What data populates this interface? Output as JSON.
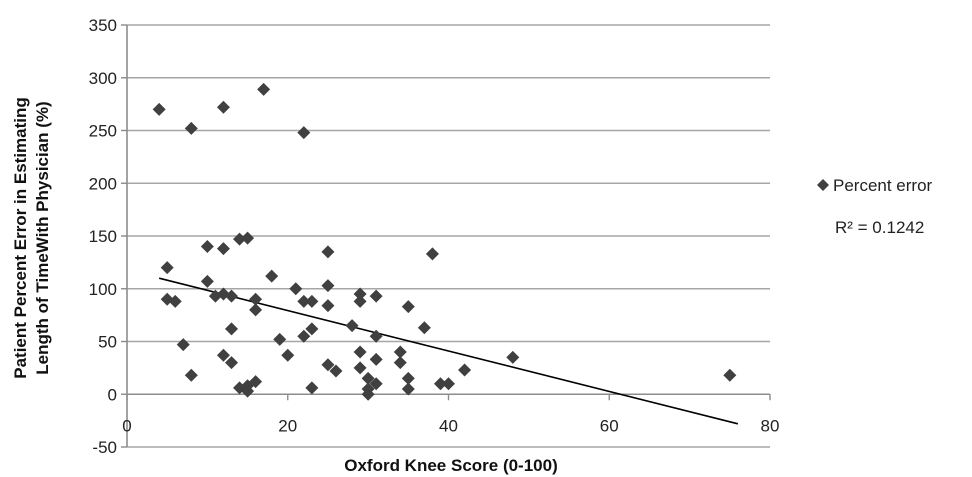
{
  "chart_data": {
    "type": "scatter",
    "title": "",
    "xlabel": "Oxford Knee Score (0-100)",
    "ylabel_lines": [
      "Patient Percent Error in Estimating",
      "Length of TimeWith Physician (%)"
    ],
    "xlim": [
      0,
      80
    ],
    "ylim": [
      -50,
      350
    ],
    "x_ticks": [
      0,
      20,
      40,
      60,
      80
    ],
    "y_ticks": [
      -50,
      0,
      50,
      100,
      150,
      200,
      250,
      300,
      350
    ],
    "grid": "horizontal",
    "legend_position": "right",
    "marker": "diamond",
    "colors": {
      "marker": "#404040",
      "trendline": "#000000",
      "grid": "#a6a6a6",
      "axis": "#8c8c8c"
    },
    "series": [
      {
        "name": "Percent error",
        "points": [
          [
            4,
            270
          ],
          [
            8,
            252
          ],
          [
            12,
            272
          ],
          [
            17,
            289
          ],
          [
            22,
            248
          ],
          [
            5,
            120
          ],
          [
            10,
            140
          ],
          [
            12,
            138
          ],
          [
            14,
            147
          ],
          [
            15,
            148
          ],
          [
            5,
            90
          ],
          [
            6,
            88
          ],
          [
            10,
            107
          ],
          [
            11,
            93
          ],
          [
            12,
            95
          ],
          [
            13,
            93
          ],
          [
            7,
            47
          ],
          [
            8,
            18
          ],
          [
            12,
            37
          ],
          [
            13,
            30
          ],
          [
            13,
            62
          ],
          [
            14,
            6
          ],
          [
            15,
            3
          ],
          [
            15,
            8
          ],
          [
            16,
            12
          ],
          [
            16,
            90
          ],
          [
            16,
            80
          ],
          [
            18,
            112
          ],
          [
            19,
            52
          ],
          [
            20,
            37
          ],
          [
            21,
            100
          ],
          [
            22,
            88
          ],
          [
            22,
            55
          ],
          [
            23,
            62
          ],
          [
            23,
            88
          ],
          [
            23,
            6
          ],
          [
            25,
            135
          ],
          [
            25,
            103
          ],
          [
            25,
            84
          ],
          [
            25,
            28
          ],
          [
            26,
            22
          ],
          [
            28,
            65
          ],
          [
            29,
            40
          ],
          [
            29,
            25
          ],
          [
            29,
            95
          ],
          [
            29,
            88
          ],
          [
            30,
            5
          ],
          [
            30,
            15
          ],
          [
            30,
            0
          ],
          [
            31,
            10
          ],
          [
            31,
            55
          ],
          [
            31,
            33
          ],
          [
            31,
            93
          ],
          [
            34,
            40
          ],
          [
            34,
            30
          ],
          [
            35,
            83
          ],
          [
            35,
            15
          ],
          [
            35,
            5
          ],
          [
            37,
            63
          ],
          [
            38,
            133
          ],
          [
            39,
            10
          ],
          [
            40,
            10
          ],
          [
            42,
            23
          ],
          [
            48,
            35
          ],
          [
            75,
            18
          ]
        ]
      }
    ],
    "trendline": {
      "x": [
        4,
        76
      ],
      "y": [
        110,
        -28
      ],
      "r_squared_label": "R² = 0.1242"
    }
  }
}
